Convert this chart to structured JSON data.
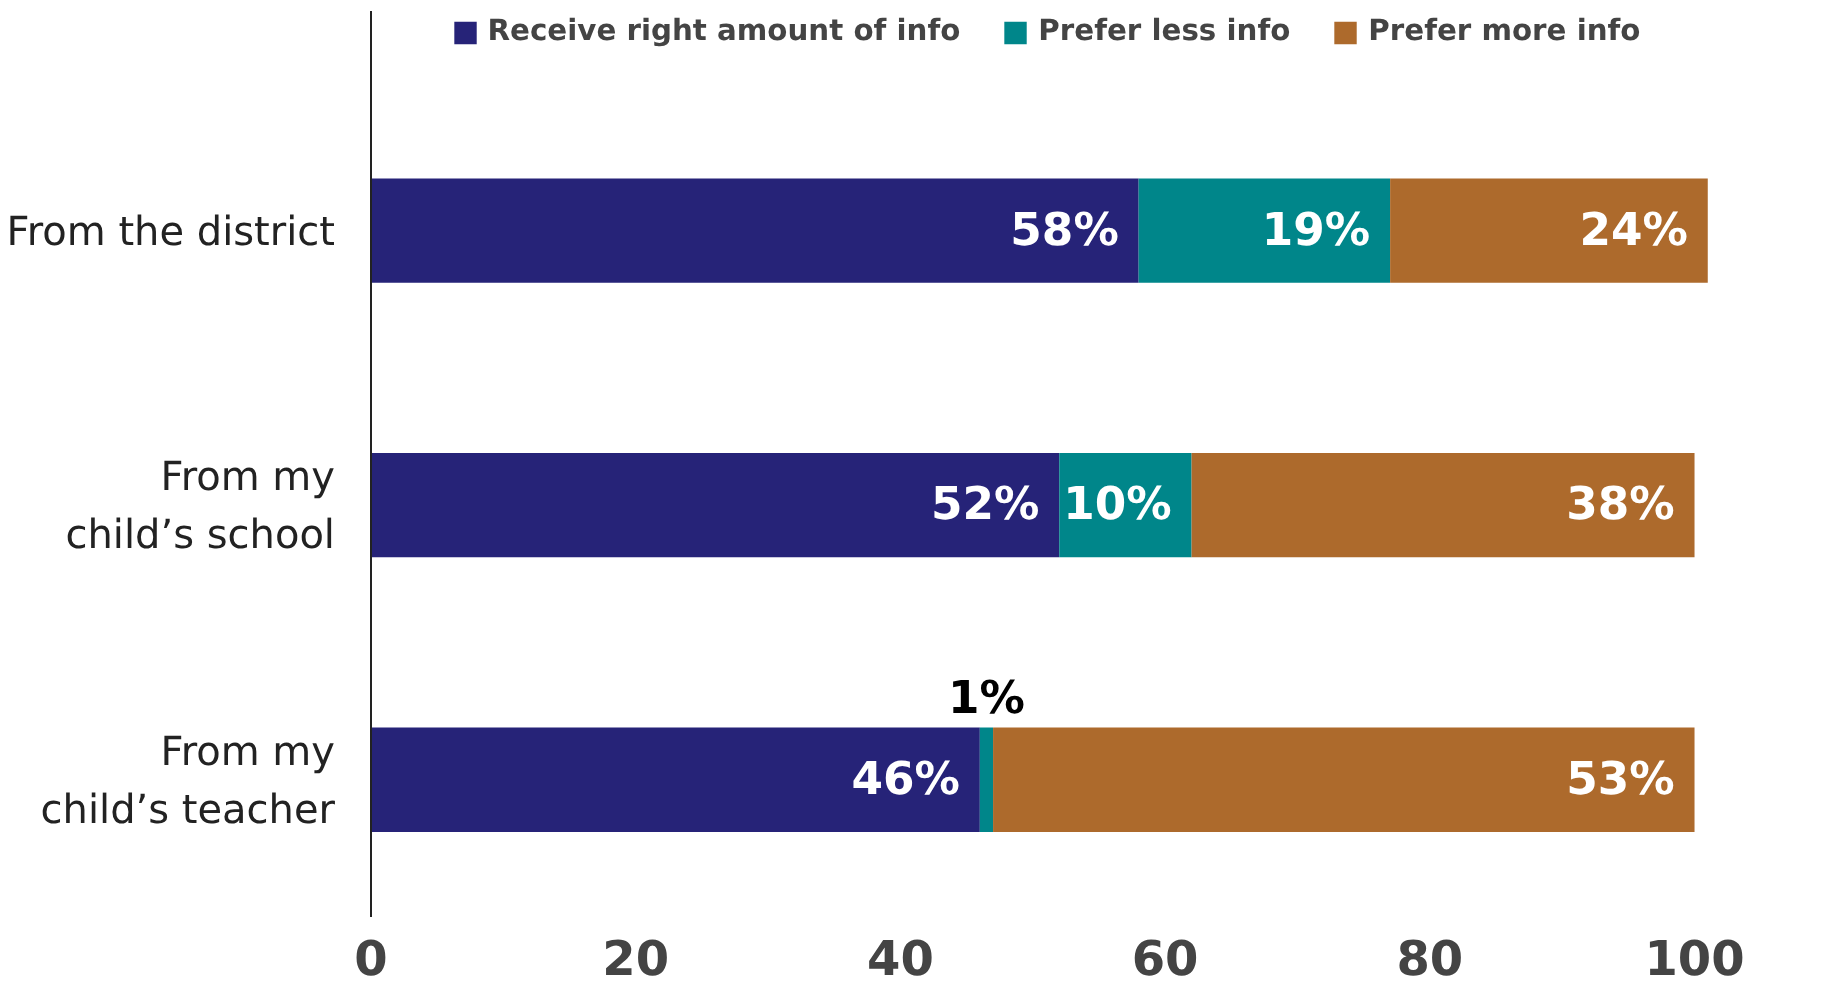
{
  "chart_data": {
    "type": "bar",
    "orientation": "horizontal",
    "stacked": true,
    "categories": [
      "From the district",
      "From my\nchild’s school",
      "From my\nchild’s teacher"
    ],
    "series": [
      {
        "name": "Receive right amount of info",
        "color": "#262378",
        "values": [
          58,
          52,
          46
        ],
        "value_labels": [
          "58%",
          "52%",
          "46%"
        ]
      },
      {
        "name": "Prefer less info",
        "color": "#00868a",
        "values": [
          19,
          10,
          1
        ],
        "value_labels": [
          "19%",
          "10%",
          "1%"
        ]
      },
      {
        "name": "Prefer more info",
        "color": "#ad6a2c",
        "values": [
          24,
          38,
          53
        ],
        "value_labels": [
          "24%",
          "38%",
          "53%"
        ]
      }
    ],
    "xlim": [
      0,
      102
    ],
    "xticks": [
      0,
      20,
      40,
      60,
      80,
      100
    ],
    "grid": false,
    "legend": "top"
  }
}
